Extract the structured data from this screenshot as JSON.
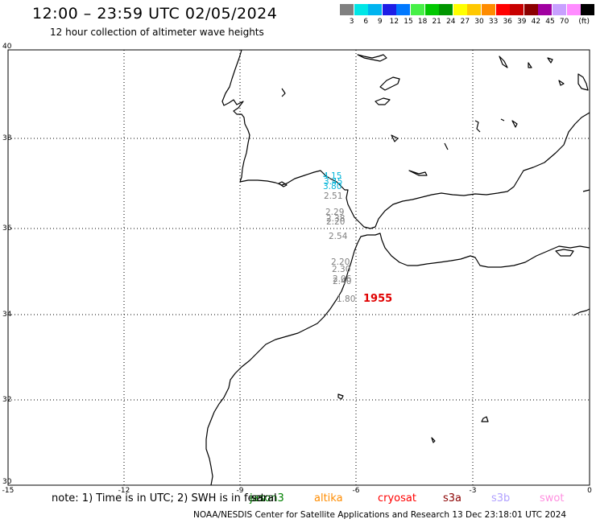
{
  "header": {
    "title": "12:00 – 23:59 UTC 02/05/2024",
    "subtitle": "12 hour collection of altimeter wave heights"
  },
  "legend": {
    "unit": "(ft)",
    "bins": [
      {
        "label": "",
        "color": "#808080"
      },
      {
        "label": "3",
        "color": "#00e6e6"
      },
      {
        "label": "6",
        "color": "#00b4f0"
      },
      {
        "label": "9",
        "color": "#1e1ee6"
      },
      {
        "label": "12",
        "color": "#0078ff"
      },
      {
        "label": "15",
        "color": "#46f046"
      },
      {
        "label": "18",
        "color": "#00c800"
      },
      {
        "label": "21",
        "color": "#009600"
      },
      {
        "label": "24",
        "color": "#ffff00"
      },
      {
        "label": "27",
        "color": "#ffc800"
      },
      {
        "label": "30",
        "color": "#ff8c00"
      },
      {
        "label": "33",
        "color": "#ff0000"
      },
      {
        "label": "36",
        "color": "#c80000"
      },
      {
        "label": "39",
        "color": "#8c0000"
      },
      {
        "label": "42",
        "color": "#a000a0"
      },
      {
        "label": "45",
        "color": "#c8a0ff"
      },
      {
        "label": "70",
        "color": "#ff8cff"
      },
      {
        "label": "",
        "color": "#000000"
      }
    ]
  },
  "map": {
    "x_ticks": [
      "-15",
      "-12",
      "-9",
      "-6",
      "-3",
      "0"
    ],
    "y_ticks": [
      "40",
      "38",
      "36",
      "34",
      "32",
      "30"
    ],
    "wave_labels": [
      {
        "text": "4.15",
        "color": "#00b4d8"
      },
      {
        "text": "3.45",
        "color": "#00b4d8"
      },
      {
        "text": "3.80",
        "color": "#00b4d8"
      },
      {
        "text": "2.51",
        "color": "#808080"
      },
      {
        "text": "2.29",
        "color": "#808080"
      },
      {
        "text": "2.38",
        "color": "#808080"
      },
      {
        "text": "2.20",
        "color": "#808080"
      },
      {
        "text": "2.54",
        "color": "#808080"
      },
      {
        "text": "2.20",
        "color": "#808080"
      },
      {
        "text": "2.30",
        "color": "#808080"
      },
      {
        "text": "2.06",
        "color": "#808080"
      },
      {
        "text": "2.40",
        "color": "#808080"
      },
      {
        "text": "1.80",
        "color": "#808080"
      }
    ],
    "time_label": {
      "text": "1955",
      "color": "#e00000"
    }
  },
  "footer": {
    "note": "note:  1) Time is in UTC;  2) SWH is in feet",
    "satellites": [
      {
        "name": "jason3",
        "color": "#008000"
      },
      {
        "name": "saral",
        "color": "#000000"
      },
      {
        "name": "altika",
        "color": "#ff8c00"
      },
      {
        "name": "cryosat",
        "color": "#ff0000"
      },
      {
        "name": "s3a",
        "color": "#8b0000"
      },
      {
        "name": "s3b",
        "color": "#b0a0ff"
      },
      {
        "name": "swot",
        "color": "#ff90e0"
      }
    ],
    "credit": "NOAA/NESDIS Center for Satellite Applications and Research    13 Dec 23:18:01 UTC 2024"
  }
}
